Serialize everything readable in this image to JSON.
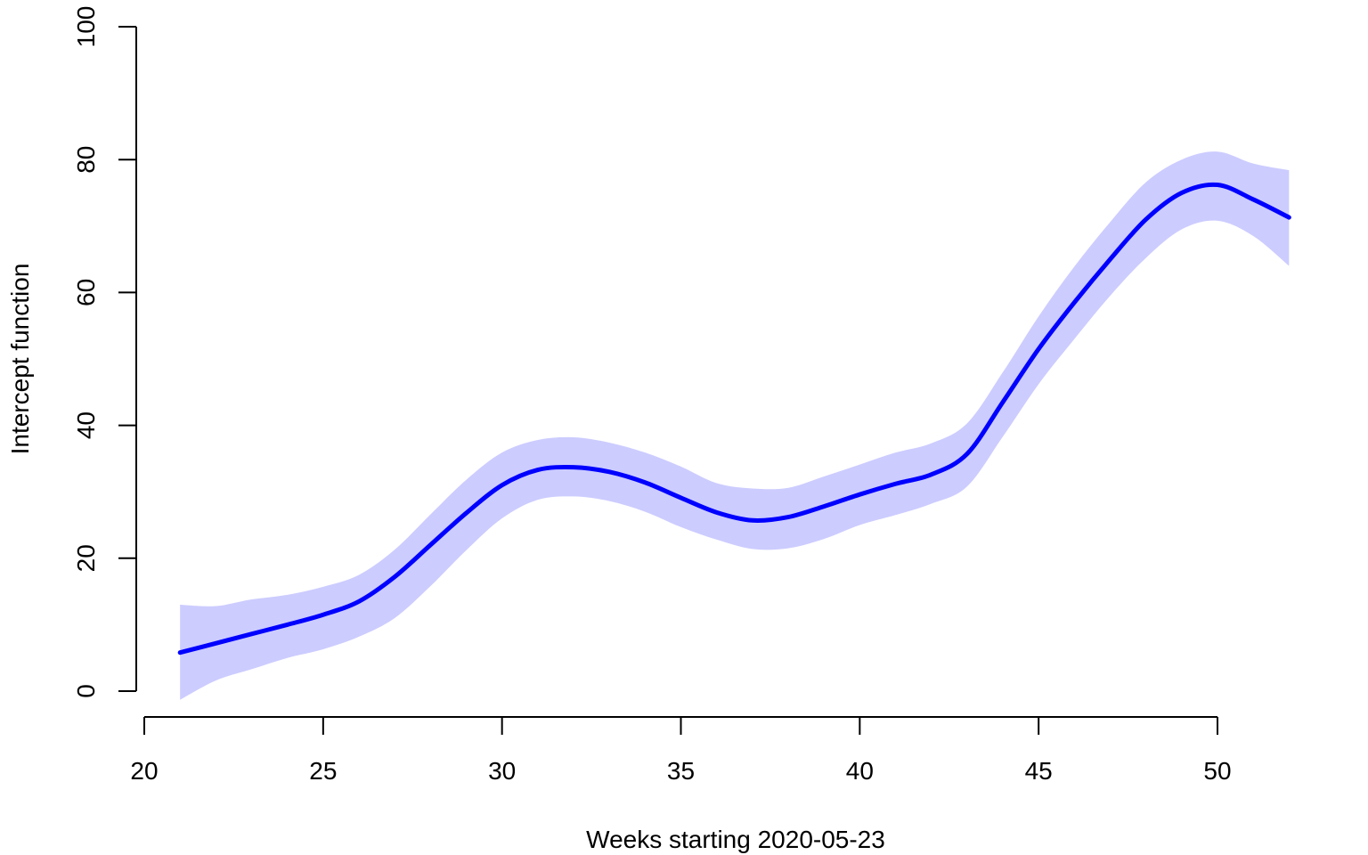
{
  "chart_data": {
    "type": "line",
    "title": "",
    "xlabel": "Weeks starting 2020-05-23",
    "ylabel": "Intercept function",
    "xlim": [
      21,
      52
    ],
    "ylim": [
      0,
      100
    ],
    "x_axis_range": [
      20,
      50
    ],
    "xticks": [
      20,
      25,
      30,
      35,
      40,
      45,
      50
    ],
    "yticks": [
      0,
      20,
      40,
      60,
      80,
      100
    ],
    "grid": false,
    "legend": "none",
    "colors": {
      "line": "#0000ff",
      "band": "#ccccff",
      "axis": "#000000"
    },
    "series": [
      {
        "x": [
          21,
          22,
          23,
          24,
          25,
          26,
          27,
          28,
          29,
          30,
          31,
          32,
          33,
          34,
          35,
          36,
          37,
          38,
          39,
          40,
          41,
          42,
          43,
          44,
          45,
          46,
          47,
          48,
          49,
          50,
          51,
          52
        ],
        "y": [
          5.8,
          7.2,
          8.6,
          10.0,
          11.5,
          13.5,
          17.2,
          22.0,
          26.8,
          31.0,
          33.3,
          33.7,
          33.0,
          31.4,
          29.1,
          26.9,
          25.7,
          26.2,
          27.8,
          29.6,
          31.2,
          32.6,
          35.7,
          43.5,
          51.5,
          58.5,
          65.0,
          71.0,
          75.0,
          76.2,
          74.0,
          71.3
        ],
        "lower": [
          -1.3,
          1.6,
          3.3,
          5.0,
          6.3,
          8.2,
          11.0,
          15.8,
          21.2,
          26.0,
          28.8,
          29.3,
          28.6,
          27.0,
          24.7,
          22.8,
          21.4,
          21.5,
          22.9,
          25.0,
          26.5,
          28.2,
          30.8,
          38.3,
          46.2,
          53.0,
          59.5,
          65.2,
          69.5,
          70.8,
          68.5,
          64.0
        ],
        "upper": [
          13.0,
          12.8,
          13.8,
          14.5,
          15.7,
          17.5,
          21.3,
          26.6,
          31.8,
          35.9,
          37.8,
          38.2,
          37.4,
          35.9,
          33.8,
          31.3,
          30.5,
          30.6,
          32.3,
          34.1,
          35.9,
          37.3,
          40.3,
          48.0,
          56.4,
          63.9,
          70.6,
          76.6,
          80.0,
          81.2,
          79.4,
          78.4
        ]
      }
    ]
  }
}
